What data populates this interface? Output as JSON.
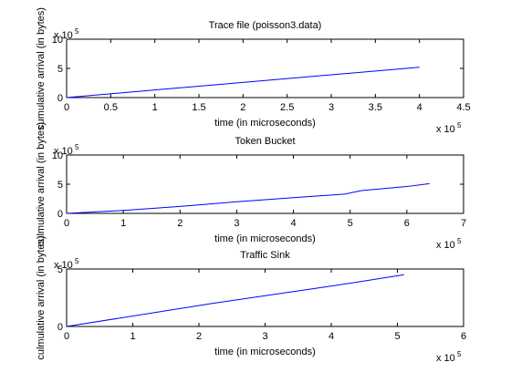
{
  "chart_data": [
    {
      "type": "line",
      "title": "Trace file (poisson3.data)",
      "xlabel": "time (in microseconds)",
      "ylabel": "cumulative arrival (in bytes)",
      "x_scale_label": "x 10",
      "x_scale_power": "5",
      "y_scale_label": "x 10",
      "y_scale_power": "5",
      "x": [
        0,
        1,
        2,
        3,
        4.0
      ],
      "values": [
        0,
        1.3,
        2.6,
        3.9,
        5.2
      ],
      "color": "#0000ff",
      "xlim": [
        0,
        4.5
      ],
      "xticks": [
        0,
        0.5,
        1,
        1.5,
        2,
        2.5,
        3,
        3.5,
        4,
        4.5
      ],
      "ylim": [
        0,
        10
      ],
      "yticks": [
        0,
        5,
        10
      ]
    },
    {
      "type": "line",
      "title": "Token Bucket",
      "xlabel": "time (in microseconds)",
      "ylabel": "culmulative arrival (in bytes)",
      "x_scale_label": "x 10",
      "x_scale_power": "5",
      "y_scale_label": "x 10",
      "y_scale_power": "5",
      "x": [
        0,
        1,
        2,
        3,
        4,
        4.9,
        5.2,
        6.0,
        6.4
      ],
      "values": [
        0,
        0.5,
        1.2,
        2.0,
        2.7,
        3.3,
        3.9,
        4.6,
        5.1
      ],
      "color": "#0000ff",
      "xlim": [
        0,
        7
      ],
      "xticks": [
        0,
        1,
        2,
        3,
        4,
        5,
        6,
        7
      ],
      "ylim": [
        0,
        10
      ],
      "yticks": [
        0,
        5,
        10
      ]
    },
    {
      "type": "line",
      "title": "Traffic Sink",
      "xlabel": "time (in microseconds)",
      "ylabel": "culmulative arrival (in bytes)",
      "x_scale_label": "x 10",
      "x_scale_power": "5",
      "y_scale_label": "x 10",
      "y_scale_power": "5",
      "x": [
        0,
        2.2,
        4.1,
        5.1
      ],
      "values": [
        0,
        2.0,
        3.6,
        4.5
      ],
      "color": "#0000ff",
      "xlim": [
        0,
        6
      ],
      "xticks": [
        0,
        1,
        2,
        3,
        4,
        5,
        6
      ],
      "ylim": [
        0,
        5
      ],
      "yticks": [
        0,
        5
      ]
    }
  ]
}
